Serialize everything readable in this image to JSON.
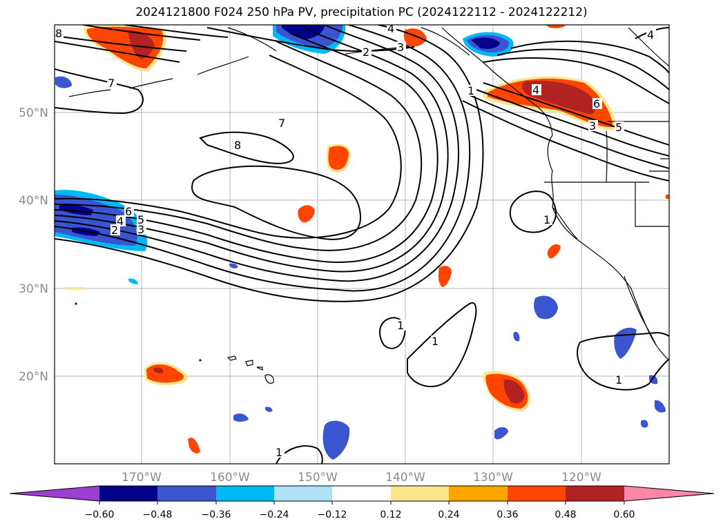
{
  "title": "2024121800 F024 250 hPa PV, precipitation PC (2024122112 - 2024122212)",
  "lat_labels": [
    "50°N",
    "40°N",
    "30°N",
    "20°N"
  ],
  "lon_labels": [
    "170°W",
    "160°W",
    "150°W",
    "140°W",
    "130°W",
    "120°W"
  ],
  "colorbar": {
    "ticks": [
      "−0.60",
      "−0.48",
      "−0.36",
      "−0.24",
      "−0.12",
      "0.12",
      "0.24",
      "0.36",
      "0.48",
      "0.60"
    ],
    "colors": [
      "#9a3fd0",
      "#00008b",
      "#3a55cf",
      "#00b8f5",
      "#afe2f7",
      "#ffffff",
      "#fbe58a",
      "#ffa500",
      "#ff4500",
      "#b22222",
      "#ff86a8"
    ]
  },
  "contour_labels": [
    "8",
    "7",
    "6",
    "5",
    "4",
    "3",
    "2",
    "1",
    "1",
    "1",
    "1",
    "1",
    "2",
    "3",
    "4",
    "5",
    "6",
    "7",
    "8",
    "1",
    "4",
    "3",
    "4"
  ],
  "region": "North Pacific / western North America"
}
